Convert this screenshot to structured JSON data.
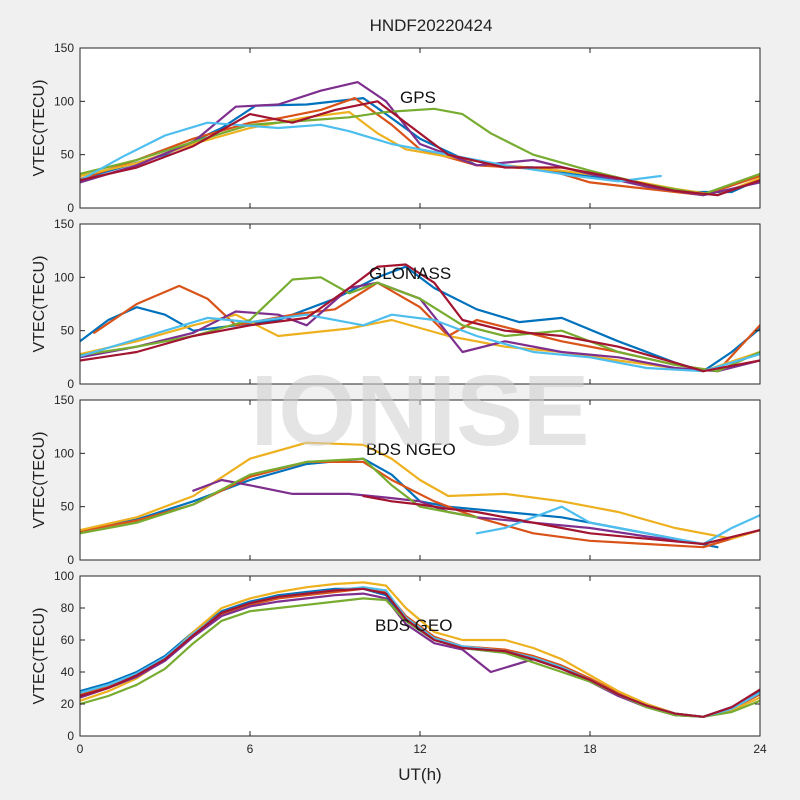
{
  "figure": {
    "title": "HNDF20220424",
    "watermark": "IONISE",
    "xlabel": "UT(h)",
    "background": "#f0f0f0"
  },
  "colors": [
    "#0072bd",
    "#d95319",
    "#edb120",
    "#7e2f8e",
    "#77ac30",
    "#4dbeee",
    "#a2142f"
  ],
  "chart_data": [
    {
      "type": "line",
      "annotation": "GPS",
      "ylabel": "VTEC(TECU)",
      "xlim": [
        0,
        24
      ],
      "ylim": [
        0,
        150
      ],
      "yticks": [
        0,
        50,
        100,
        150
      ],
      "xticks": [
        0,
        6,
        12,
        18,
        24
      ],
      "series": [
        {
          "x": [
            0,
            3,
            5,
            6.2,
            8,
            10,
            10.8,
            12,
            14,
            16,
            18,
            20,
            21.5,
            23,
            24
          ],
          "y": [
            27,
            50,
            75,
            96,
            97,
            103,
            88,
            65,
            40,
            38,
            30,
            22,
            15,
            15,
            27
          ],
          "color": 0
        },
        {
          "x": [
            0,
            2,
            4,
            6,
            7,
            8.5,
            9.7,
            11,
            12,
            14,
            16.5,
            18,
            20,
            22,
            24
          ],
          "y": [
            27,
            45,
            65,
            80,
            84,
            92,
            103,
            78,
            55,
            40,
            36,
            24,
            18,
            12,
            30
          ],
          "color": 1
        },
        {
          "x": [
            0,
            2,
            4,
            6,
            8,
            9.5,
            10.5,
            11.5,
            13,
            15,
            17,
            19,
            21,
            22.5,
            24
          ],
          "y": [
            30,
            42,
            60,
            75,
            85,
            90,
            70,
            55,
            48,
            40,
            35,
            28,
            18,
            12,
            28
          ],
          "color": 2
        },
        {
          "x": [
            0,
            2,
            4,
            5.5,
            7,
            8.5,
            9.8,
            10.8,
            12,
            14,
            16,
            18,
            20,
            22,
            24
          ],
          "y": [
            24,
            40,
            62,
            95,
            97,
            110,
            118,
            100,
            60,
            40,
            45,
            32,
            20,
            12,
            24
          ],
          "color": 3
        },
        {
          "x": [
            0,
            2,
            4,
            6,
            8,
            9.5,
            10.8,
            12.5,
            13.5,
            14.5,
            16,
            18,
            20,
            22,
            24
          ],
          "y": [
            32,
            45,
            62,
            78,
            82,
            85,
            90,
            93,
            88,
            70,
            50,
            35,
            22,
            13,
            32
          ],
          "color": 4
        },
        {
          "x": [
            0,
            1.5,
            3,
            4.5,
            5.5,
            7,
            8.5,
            9.5,
            11,
            13,
            15,
            17.5,
            19,
            20.5
          ],
          "y": [
            26,
            48,
            68,
            80,
            78,
            75,
            78,
            72,
            60,
            50,
            40,
            30,
            25,
            30
          ],
          "color": 5
        },
        {
          "x": [
            0,
            2,
            4,
            6,
            7.5,
            9,
            10.5,
            11.5,
            13,
            15,
            17,
            19,
            21,
            22.5,
            24
          ],
          "y": [
            26,
            38,
            58,
            88,
            80,
            92,
            100,
            80,
            50,
            38,
            38,
            28,
            16,
            12,
            26
          ],
          "color": 6
        }
      ]
    },
    {
      "type": "line",
      "annotation": "GLONASS",
      "ylabel": "VTEC(TECU)",
      "xlim": [
        0,
        24
      ],
      "ylim": [
        0,
        150
      ],
      "yticks": [
        0,
        50,
        100,
        150
      ],
      "xticks": [
        0,
        6,
        12,
        18,
        24
      ],
      "series": [
        {
          "x": [
            0,
            1,
            2,
            3,
            4,
            7,
            9,
            10.5,
            11.5,
            12.5,
            14,
            15.5,
            17,
            19,
            21,
            22,
            23,
            24
          ],
          "y": [
            40,
            60,
            72,
            65,
            50,
            60,
            80,
            100,
            110,
            90,
            70,
            58,
            62,
            40,
            20,
            12,
            30,
            52
          ],
          "color": 0
        },
        {
          "x": [
            0.5,
            2,
            3.5,
            4.5,
            5.5,
            7.5,
            9,
            10.5,
            12,
            13,
            14,
            15.5,
            17,
            19,
            21,
            22.5,
            24
          ],
          "y": [
            48,
            75,
            92,
            80,
            55,
            65,
            70,
            95,
            72,
            45,
            60,
            50,
            40,
            30,
            18,
            12,
            55
          ],
          "color": 1
        },
        {
          "x": [
            0,
            2,
            4,
            5.5,
            7,
            9.5,
            11,
            13,
            15,
            17,
            19,
            21,
            22,
            24
          ],
          "y": [
            28,
            40,
            55,
            65,
            45,
            52,
            60,
            45,
            35,
            30,
            22,
            15,
            12,
            30
          ],
          "color": 2
        },
        {
          "x": [
            0,
            2,
            4,
            5.5,
            7,
            8,
            9.5,
            10.5,
            12,
            13.5,
            15,
            17,
            19,
            21,
            22.5,
            24
          ],
          "y": [
            25,
            35,
            48,
            68,
            65,
            55,
            90,
            95,
            80,
            30,
            40,
            30,
            25,
            15,
            12,
            22
          ],
          "color": 3
        },
        {
          "x": [
            0,
            2,
            4,
            6,
            7.5,
            8.5,
            9.5,
            10.5,
            12,
            13.5,
            15,
            17,
            19,
            21,
            22.5,
            24
          ],
          "y": [
            27,
            35,
            45,
            60,
            98,
            100,
            85,
            95,
            80,
            55,
            45,
            50,
            30,
            18,
            12,
            30
          ],
          "color": 4
        },
        {
          "x": [
            0,
            1.5,
            3,
            4.5,
            6,
            8,
            10,
            11,
            12.5,
            14,
            16,
            18,
            20,
            22,
            24
          ],
          "y": [
            26,
            38,
            50,
            62,
            58,
            65,
            55,
            65,
            60,
            45,
            30,
            25,
            15,
            12,
            28
          ],
          "color": 5
        },
        {
          "x": [
            0,
            2,
            4,
            6,
            8,
            9.5,
            10.5,
            11.5,
            12.5,
            13.5,
            15,
            17,
            19,
            21,
            22,
            24
          ],
          "y": [
            22,
            30,
            45,
            55,
            62,
            90,
            110,
            112,
            95,
            60,
            50,
            45,
            35,
            20,
            12,
            22
          ],
          "color": 6
        }
      ]
    },
    {
      "type": "line",
      "annotation": "BDS NGEO",
      "ylabel": "VTEC(TECU)",
      "xlim": [
        0,
        24
      ],
      "ylim": [
        0,
        150
      ],
      "yticks": [
        0,
        50,
        100,
        150
      ],
      "xticks": [
        0,
        6,
        12,
        18,
        24
      ],
      "series": [
        {
          "x": [
            0,
            2,
            4,
            6,
            8,
            10,
            11,
            12,
            13,
            15,
            17,
            19,
            21,
            22.5
          ],
          "y": [
            27,
            38,
            55,
            75,
            90,
            95,
            80,
            55,
            50,
            45,
            40,
            30,
            20,
            12
          ],
          "color": 0
        },
        {
          "x": [
            0,
            2,
            4,
            6,
            8,
            10,
            11,
            12.5,
            14,
            16,
            18,
            20,
            22,
            24
          ],
          "y": [
            27,
            37,
            52,
            78,
            92,
            92,
            75,
            55,
            40,
            25,
            18,
            15,
            12,
            28
          ],
          "color": 1
        },
        {
          "x": [
            0,
            2,
            4,
            6,
            8,
            10,
            11,
            12,
            13,
            15,
            17,
            19,
            21,
            23,
            24
          ],
          "y": [
            28,
            40,
            60,
            95,
            110,
            108,
            95,
            75,
            60,
            62,
            55,
            45,
            30,
            20,
            28
          ],
          "color": 2
        },
        {
          "x": [
            4,
            5,
            6,
            7.5,
            9.5,
            11,
            12,
            13,
            14,
            16,
            18,
            20,
            22
          ],
          "y": [
            65,
            75,
            70,
            62,
            62,
            58,
            55,
            45,
            40,
            35,
            30,
            22,
            15
          ],
          "color": 3
        },
        {
          "x": [
            0,
            2,
            4,
            6,
            8,
            10,
            11,
            12,
            13,
            14
          ],
          "y": [
            25,
            35,
            52,
            80,
            92,
            95,
            70,
            50,
            45,
            40
          ],
          "color": 4
        },
        {
          "x": [
            14,
            15,
            16,
            17,
            18,
            19,
            20,
            21,
            22,
            23,
            24
          ],
          "y": [
            25,
            30,
            40,
            50,
            35,
            30,
            25,
            20,
            15,
            30,
            42
          ],
          "color": 5
        },
        {
          "x": [
            10,
            11,
            12,
            13,
            14,
            15,
            16,
            17,
            18,
            20,
            22,
            24
          ],
          "y": [
            60,
            55,
            52,
            48,
            45,
            40,
            35,
            30,
            25,
            20,
            15,
            28
          ],
          "color": 6
        }
      ]
    },
    {
      "type": "line",
      "annotation": "BDS GEO",
      "ylabel": "VTEC(TECU)",
      "xlim": [
        0,
        24
      ],
      "ylim": [
        0,
        100
      ],
      "yticks": [
        0,
        20,
        40,
        60,
        80,
        100
      ],
      "xticks": [
        0,
        6,
        12,
        18,
        24
      ],
      "series": [
        {
          "x": [
            0,
            1,
            2,
            3,
            4,
            5,
            6,
            7,
            8,
            9,
            10,
            10.8,
            11.5,
            12.5,
            13.5,
            15,
            16,
            17,
            18,
            19,
            20,
            21,
            22,
            23,
            24
          ],
          "y": [
            28,
            33,
            40,
            50,
            65,
            78,
            84,
            88,
            90,
            92,
            92,
            88,
            72,
            60,
            55,
            52,
            48,
            42,
            35,
            26,
            19,
            14,
            12,
            18,
            28
          ],
          "color": 0
        },
        {
          "x": [
            0,
            1,
            2,
            3,
            4,
            5,
            6,
            7,
            8,
            9,
            10,
            10.8,
            11.5,
            12.5,
            13.5,
            15,
            16,
            17,
            18,
            19,
            20,
            21,
            22,
            23,
            24
          ],
          "y": [
            26,
            31,
            38,
            48,
            63,
            76,
            82,
            86,
            88,
            90,
            92,
            90,
            75,
            62,
            56,
            54,
            50,
            44,
            36,
            27,
            20,
            14,
            12,
            17,
            26
          ],
          "color": 1
        },
        {
          "x": [
            0,
            1,
            2,
            3,
            4,
            5,
            6,
            7,
            8,
            9,
            10,
            10.8,
            11.5,
            12.5,
            13.5,
            15,
            16,
            17,
            18,
            19,
            20,
            21,
            22,
            23,
            24
          ],
          "y": [
            22,
            28,
            36,
            48,
            65,
            80,
            86,
            90,
            93,
            95,
            96,
            94,
            80,
            65,
            60,
            60,
            55,
            48,
            38,
            28,
            20,
            14,
            12,
            16,
            24
          ],
          "color": 2
        },
        {
          "x": [
            0,
            1,
            2,
            3,
            4,
            5,
            6,
            7,
            8,
            9,
            10,
            10.8,
            11.5,
            12.5,
            13.5,
            14.5,
            16,
            17,
            18,
            19,
            20,
            21,
            22,
            23,
            24
          ],
          "y": [
            24,
            30,
            37,
            47,
            62,
            75,
            81,
            84,
            86,
            88,
            89,
            86,
            70,
            58,
            54,
            40,
            48,
            42,
            34,
            25,
            18,
            13,
            12,
            18,
            27
          ],
          "color": 3
        },
        {
          "x": [
            0,
            1,
            2,
            3,
            4,
            5,
            6,
            7,
            8,
            9,
            10,
            10.8,
            11.5,
            12.5,
            13.5,
            15,
            16,
            17,
            18,
            19,
            20,
            21,
            22,
            23,
            24
          ],
          "y": [
            20,
            25,
            32,
            42,
            58,
            72,
            78,
            80,
            82,
            84,
            86,
            85,
            72,
            60,
            55,
            52,
            46,
            40,
            34,
            26,
            18,
            13,
            12,
            15,
            22
          ],
          "color": 4
        },
        {
          "x": [
            0,
            1,
            2,
            3,
            4,
            5,
            6,
            7,
            8,
            9,
            10,
            10.8,
            11.5,
            12.5,
            13.5,
            15,
            16,
            17,
            18,
            19,
            20,
            21,
            22,
            23,
            24
          ],
          "y": [
            27,
            32,
            39,
            49,
            64,
            77,
            83,
            87,
            89,
            91,
            93,
            91,
            74,
            61,
            56,
            53,
            49,
            43,
            35,
            26,
            19,
            14,
            12,
            17,
            27
          ],
          "color": 5
        },
        {
          "x": [
            0,
            1,
            2,
            3,
            4,
            5,
            6,
            7,
            8,
            9,
            10,
            10.8,
            11.5,
            12.5,
            13.5,
            15,
            16,
            17,
            18,
            19,
            20,
            21,
            22,
            23,
            24
          ],
          "y": [
            25,
            30,
            38,
            48,
            63,
            77,
            83,
            87,
            89,
            91,
            92,
            89,
            73,
            60,
            55,
            53,
            48,
            42,
            35,
            26,
            19,
            14,
            12,
            18,
            29
          ],
          "color": 6
        }
      ]
    }
  ]
}
